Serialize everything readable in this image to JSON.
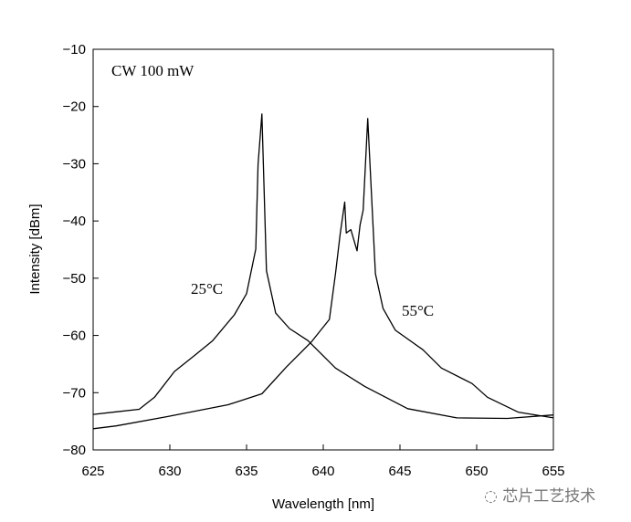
{
  "chart_data": {
    "type": "line",
    "xlabel": "Wavelength [nm]",
    "ylabel": "Intensity [dBm]",
    "annotation": "CW 100 mW",
    "xlim": [
      625,
      655
    ],
    "ylim": [
      -80,
      -10
    ],
    "xticks": [
      625,
      630,
      635,
      640,
      645,
      650,
      655
    ],
    "yticks": [
      -10,
      -20,
      -30,
      -40,
      -50,
      -60,
      -70,
      -80
    ],
    "grid": false,
    "series": [
      {
        "name": "25°C",
        "x": [
          625,
          628,
          629,
          630.3,
          631.7,
          632.8,
          634.2,
          635,
          635.6,
          635.75,
          636,
          636.3,
          636.9,
          637.8,
          639,
          640.8,
          642.7,
          645.5,
          648.7,
          652,
          655
        ],
        "y": [
          -73.8,
          -72.9,
          -70.8,
          -66.3,
          -63.3,
          -60.9,
          -56.4,
          -52.7,
          -44.9,
          -30.1,
          -21.3,
          -48.7,
          -56.1,
          -58.8,
          -60.9,
          -65.7,
          -68.9,
          -72.8,
          -74.4,
          -74.5,
          -73.9
        ]
      },
      {
        "name": "55°C",
        "x": [
          625,
          626.5,
          629.8,
          633.8,
          636,
          637.6,
          639.2,
          640.4,
          640.8,
          641.1,
          641.4,
          641.5,
          641.8,
          642.2,
          642.4,
          642.6,
          642.9,
          643.4,
          643.9,
          644.7,
          646.5,
          647.7,
          649.7,
          650.7,
          652.7,
          655
        ],
        "y": [
          -76.3,
          -75.8,
          -74.2,
          -72.1,
          -70.2,
          -65.5,
          -61.2,
          -57.2,
          -49.2,
          -42.3,
          -36.7,
          -42.1,
          -41.5,
          -45.2,
          -40.7,
          -38.1,
          -22.1,
          -49.2,
          -55.3,
          -59.1,
          -62.5,
          -65.7,
          -68.4,
          -70.8,
          -73.4,
          -74.4
        ]
      }
    ]
  },
  "watermark": "芯片工艺技术",
  "colors": {
    "line": "#000000",
    "watermark": "#777777"
  }
}
